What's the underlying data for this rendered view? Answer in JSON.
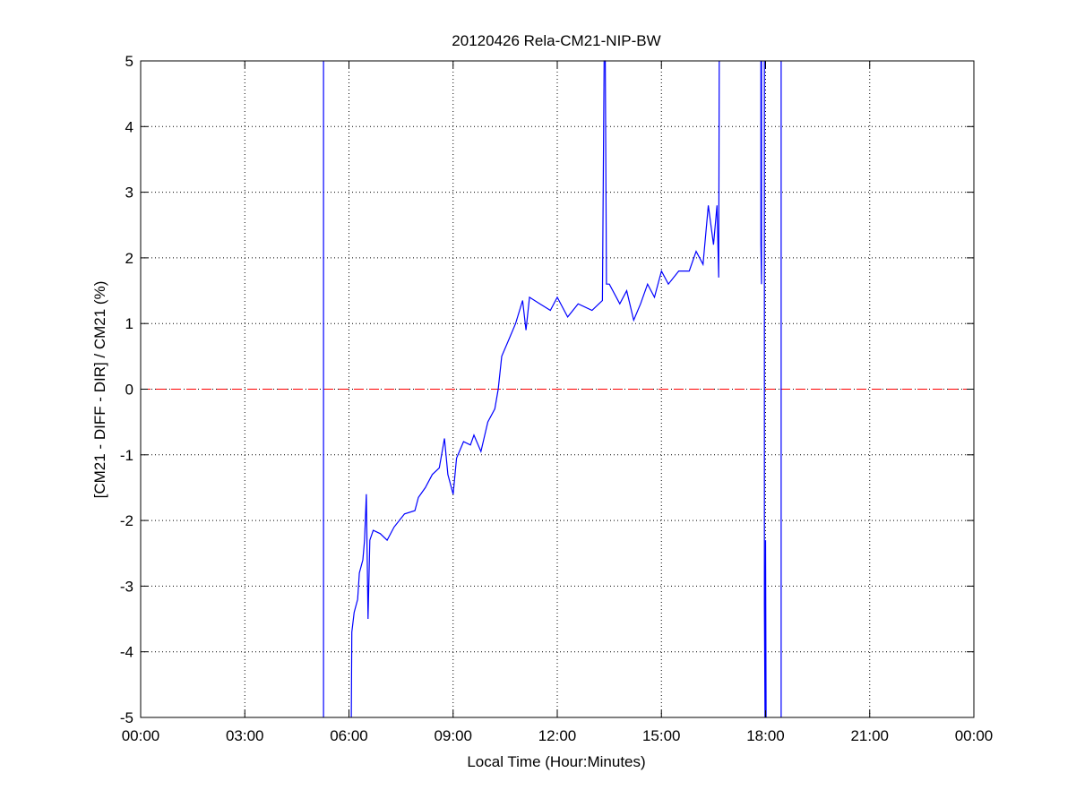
{
  "chart_data": {
    "type": "line",
    "title": "20120426 Rela-CM21-NIP-BW",
    "xlabel": "Local Time (Hour:Minutes)",
    "ylabel": "[CM21 - DIFF - DIR] / CM21 (%)",
    "xlim": [
      "00:00",
      "24:00"
    ],
    "ylim": [
      -5,
      5
    ],
    "xticks": [
      "00:00",
      "03:00",
      "06:00",
      "09:00",
      "12:00",
      "15:00",
      "18:00",
      "21:00",
      "00:00"
    ],
    "yticks": [
      "-5",
      "-4",
      "-3",
      "-2",
      "-1",
      "0",
      "1",
      "2",
      "3",
      "4",
      "5"
    ],
    "grid": true,
    "line_color": "#0000ff",
    "reference_line": {
      "y": 0,
      "color": "#ff0000",
      "style": "dashed"
    },
    "series": [
      {
        "segments": [
          [
            [
              "05:16",
              -5
            ],
            [
              "05:16",
              5
            ]
          ],
          [
            [
              "06:04",
              -5
            ],
            [
              "06:05",
              -3.7
            ],
            [
              "06:09",
              -3.4
            ],
            [
              "06:15",
              -3.2
            ],
            [
              "06:18",
              -2.8
            ],
            [
              "06:24",
              -2.6
            ],
            [
              "06:27",
              -2.3
            ],
            [
              "06:30",
              -1.6
            ],
            [
              "06:33",
              -3.5
            ],
            [
              "06:36",
              -2.3
            ],
            [
              "06:42",
              -2.15
            ],
            [
              "06:54",
              -2.2
            ],
            [
              "07:06",
              -2.3
            ],
            [
              "07:18",
              -2.1
            ],
            [
              "07:36",
              -1.9
            ],
            [
              "07:54",
              -1.85
            ],
            [
              "08:00",
              -1.65
            ],
            [
              "08:12",
              -1.5
            ],
            [
              "08:24",
              -1.3
            ],
            [
              "08:36",
              -1.2
            ],
            [
              "08:45",
              -0.75
            ],
            [
              "08:51",
              -1.3
            ],
            [
              "09:00",
              -1.6
            ],
            [
              "09:06",
              -1.05
            ],
            [
              "09:18",
              -0.8
            ],
            [
              "09:30",
              -0.85
            ],
            [
              "09:36",
              -0.7
            ],
            [
              "09:48",
              -0.95
            ],
            [
              "10:00",
              -0.5
            ],
            [
              "10:12",
              -0.3
            ],
            [
              "10:18",
              0.0
            ],
            [
              "10:24",
              0.5
            ],
            [
              "10:36",
              0.75
            ],
            [
              "10:48",
              1.0
            ],
            [
              "11:00",
              1.35
            ],
            [
              "11:06",
              0.9
            ],
            [
              "11:12",
              1.4
            ],
            [
              "11:30",
              1.3
            ],
            [
              "11:48",
              1.2
            ],
            [
              "12:00",
              1.4
            ],
            [
              "12:18",
              1.1
            ],
            [
              "12:36",
              1.3
            ],
            [
              "13:00",
              1.2
            ],
            [
              "13:12",
              1.3
            ],
            [
              "13:18",
              1.35
            ],
            [
              "13:21",
              5
            ],
            [
              "13:23",
              5
            ],
            [
              "13:24",
              3.2
            ],
            [
              "13:25",
              1.6
            ],
            [
              "13:30",
              1.6
            ],
            [
              "13:48",
              1.3
            ],
            [
              "14:00",
              1.5
            ],
            [
              "14:12",
              1.05
            ],
            [
              "14:24",
              1.3
            ],
            [
              "14:36",
              1.6
            ],
            [
              "14:48",
              1.4
            ],
            [
              "15:00",
              1.8
            ],
            [
              "15:12",
              1.6
            ],
            [
              "15:30",
              1.8
            ],
            [
              "15:48",
              1.8
            ],
            [
              "16:00",
              2.1
            ],
            [
              "16:12",
              1.9
            ],
            [
              "16:21",
              2.8
            ],
            [
              "16:30",
              2.2
            ],
            [
              "16:36",
              2.8
            ],
            [
              "16:39",
              1.7
            ],
            [
              "16:40",
              5
            ]
          ],
          [
            [
              "17:52",
              5
            ],
            [
              "17:52",
              2.2
            ],
            [
              "17:53",
              1.6
            ],
            [
              "17:53",
              5
            ]
          ],
          [
            [
              "17:58",
              5
            ],
            [
              "17:58",
              -3.3
            ],
            [
              "17:59",
              -5
            ],
            [
              "18:00",
              -2.3
            ],
            [
              "18:01",
              -5
            ]
          ],
          [
            [
              "18:27",
              -5
            ],
            [
              "18:27",
              5
            ]
          ]
        ]
      }
    ]
  }
}
